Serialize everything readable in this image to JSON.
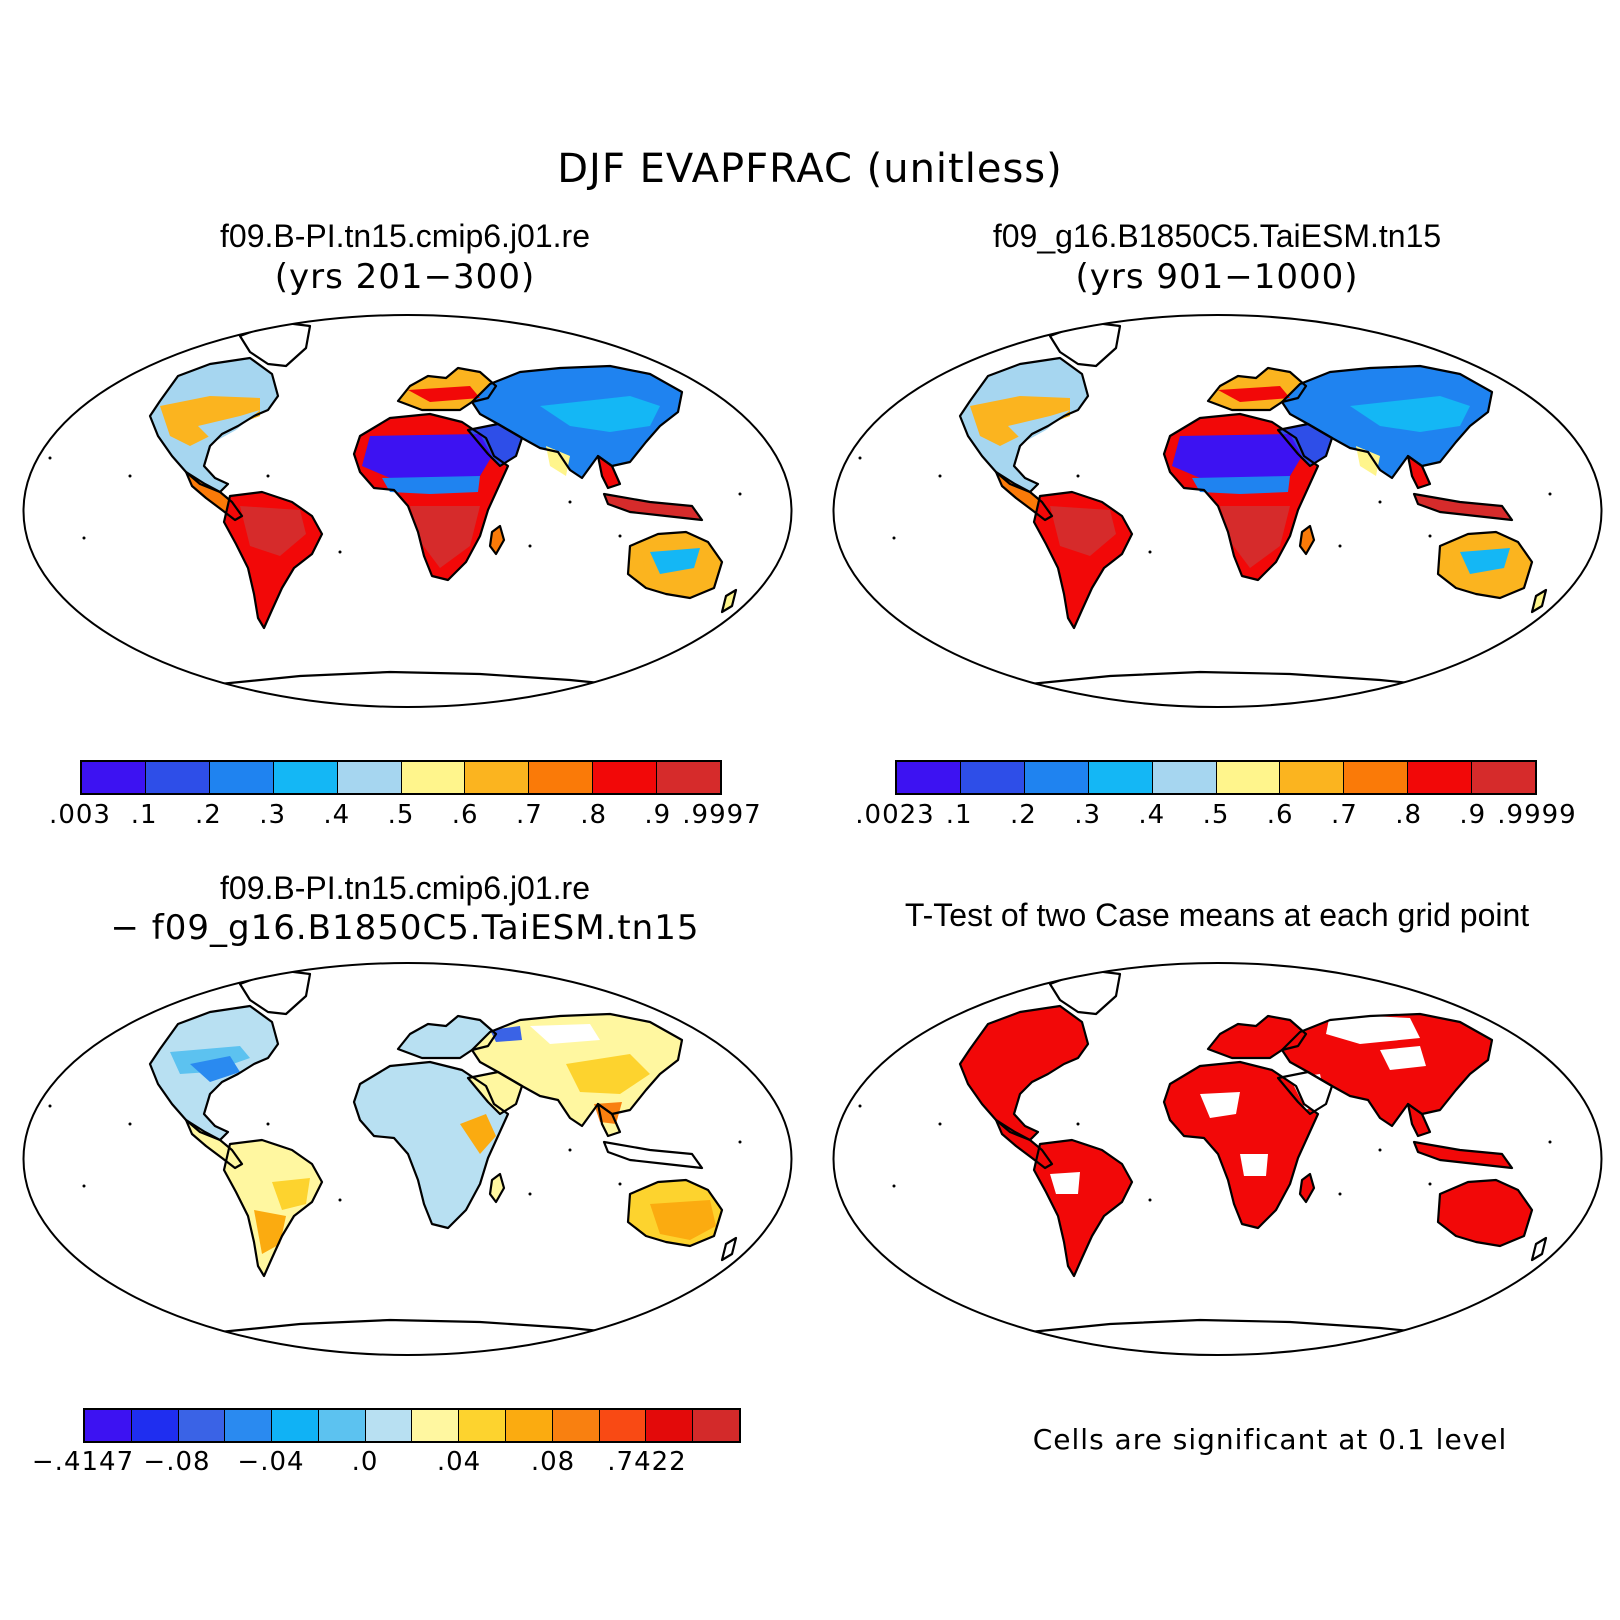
{
  "figure": {
    "title": "DJF EVAPFRAC (unitless)"
  },
  "panels": [
    {
      "id": "case1",
      "title": "f09.B-PI.tn15.cmip6.j01.re",
      "subtitle": "(yrs 201−300)",
      "colorbar": {
        "colors": [
          "#3d12f2",
          "#2e4ee8",
          "#1f83f0",
          "#14b7f5",
          "#a6d6f0",
          "#fff58c",
          "#fbb41f",
          "#fa7a08",
          "#f20808",
          "#d62b2b"
        ],
        "labels": [
          ".003",
          ".1",
          ".2",
          ".3",
          ".4",
          ".5",
          ".6",
          ".7",
          ".8",
          ".9",
          ".9997"
        ]
      }
    },
    {
      "id": "case2",
      "title": "f09_g16.B1850C5.TaiESM.tn15",
      "subtitle": "(yrs 901−1000)",
      "colorbar": {
        "colors": [
          "#3d12f2",
          "#2e4ee8",
          "#1f83f0",
          "#14b7f5",
          "#a6d6f0",
          "#fff58c",
          "#fbb41f",
          "#fa7a08",
          "#f20808",
          "#d62b2b"
        ],
        "labels": [
          ".0023",
          ".1",
          ".2",
          ".3",
          ".4",
          ".5",
          ".6",
          ".7",
          ".8",
          ".9",
          ".9999"
        ]
      }
    },
    {
      "id": "diff",
      "title": "f09.B-PI.tn15.cmip6.j01.re",
      "subtitle": "− f09_g16.B1850C5.TaiESM.tn15",
      "colorbar": {
        "colors": [
          "#3d12f2",
          "#1f2ef0",
          "#3a63e6",
          "#2a8af0",
          "#10b2f5",
          "#5cc2f0",
          "#b8e0f2",
          "#fff7a0",
          "#fdd32e",
          "#fbab10",
          "#f98010",
          "#f94a14",
          "#e30a0a",
          "#d32a2a"
        ],
        "labels": [
          "−.4147",
          "−.08",
          "−.04",
          ".0",
          ".04",
          ".08",
          ".7422"
        ]
      }
    },
    {
      "id": "ttest",
      "title": "T-Test of two Case means at each grid point",
      "note": "Cells are significant at 0.1 level",
      "sig_color": "#f20808"
    }
  ]
}
